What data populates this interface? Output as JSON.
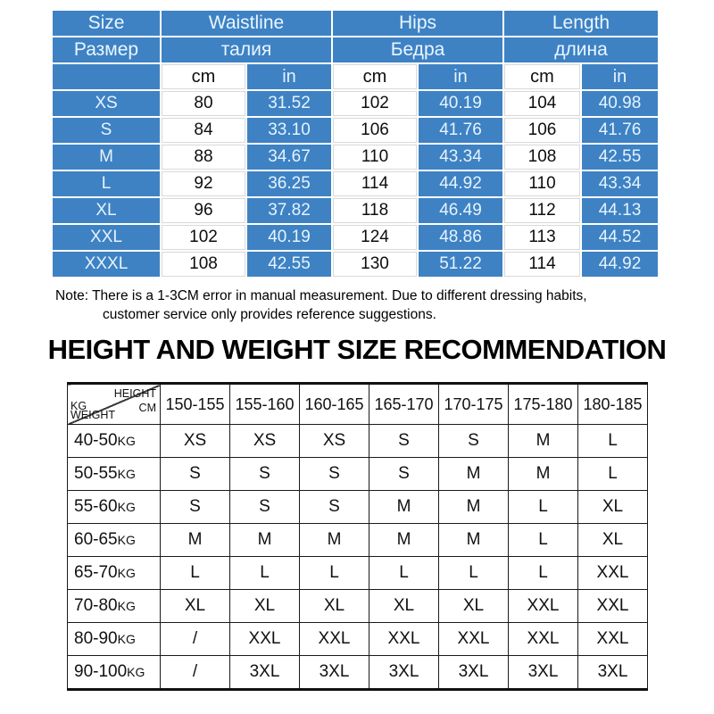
{
  "colors": {
    "table_blue": "#3E82C4",
    "light_text": "#E6F3FC",
    "dark_text": "#111111",
    "border_dark": "#1a1a1a"
  },
  "size_table": {
    "headers": [
      {
        "en": "Size",
        "ru": "Размер"
      },
      {
        "en": "Waistline",
        "ru": "талия"
      },
      {
        "en": "Hips",
        "ru": "Бедра"
      },
      {
        "en": "Length",
        "ru": "длина"
      }
    ],
    "units": {
      "cm": "cm",
      "in": "in"
    },
    "rows": [
      {
        "size": "XS",
        "values": [
          "80",
          "31.52",
          "102",
          "40.19",
          "104",
          "40.98"
        ]
      },
      {
        "size": "S",
        "values": [
          "84",
          "33.10",
          "106",
          "41.76",
          "106",
          "41.76"
        ]
      },
      {
        "size": "M",
        "values": [
          "88",
          "34.67",
          "110",
          "43.34",
          "108",
          "42.55"
        ]
      },
      {
        "size": "L",
        "values": [
          "92",
          "36.25",
          "114",
          "44.92",
          "110",
          "43.34"
        ]
      },
      {
        "size": "XL",
        "values": [
          "96",
          "37.82",
          "118",
          "46.49",
          "112",
          "44.13"
        ]
      },
      {
        "size": "XXL",
        "values": [
          "102",
          "40.19",
          "124",
          "48.86",
          "113",
          "44.52"
        ]
      },
      {
        "size": "XXXL",
        "values": [
          "108",
          "42.55",
          "130",
          "51.22",
          "114",
          "44.92"
        ]
      }
    ]
  },
  "note": {
    "line1": "Note: There is a 1-3CM error in manual measurement. Due to different dressing habits,",
    "line2": "customer service only provides reference suggestions."
  },
  "recommendation": {
    "title": "HEIGHT AND WEIGHT SIZE RECOMMENDATION",
    "corner": {
      "height": "HEIGHT",
      "cm": "CM",
      "kg": "KG",
      "weight": "WEIGHT"
    },
    "height_ranges": [
      "150-155",
      "155-160",
      "160-165",
      "165-170",
      "170-175",
      "175-180",
      "180-185"
    ],
    "rows": [
      {
        "weight": "40-50",
        "unit": "KG",
        "sizes": [
          "XS",
          "XS",
          "XS",
          "S",
          "S",
          "M",
          "L"
        ]
      },
      {
        "weight": "50-55",
        "unit": "KG",
        "sizes": [
          "S",
          "S",
          "S",
          "S",
          "M",
          "M",
          "L"
        ]
      },
      {
        "weight": "55-60",
        "unit": "KG",
        "sizes": [
          "S",
          "S",
          "S",
          "M",
          "M",
          "L",
          "XL"
        ]
      },
      {
        "weight": "60-65",
        "unit": "KG",
        "sizes": [
          "M",
          "M",
          "M",
          "M",
          "M",
          "L",
          "XL"
        ]
      },
      {
        "weight": "65-70",
        "unit": "KG",
        "sizes": [
          "L",
          "L",
          "L",
          "L",
          "L",
          "L",
          "XXL"
        ]
      },
      {
        "weight": "70-80",
        "unit": "KG",
        "sizes": [
          "XL",
          "XL",
          "XL",
          "XL",
          "XL",
          "XXL",
          "XXL"
        ]
      },
      {
        "weight": "80-90",
        "unit": "KG",
        "sizes": [
          "/",
          "XXL",
          "XXL",
          "XXL",
          "XXL",
          "XXL",
          "XXL"
        ]
      },
      {
        "weight": "90-100",
        "unit": "KG",
        "sizes": [
          "/",
          "3XL",
          "3XL",
          "3XL",
          "3XL",
          "3XL",
          "3XL"
        ]
      }
    ]
  }
}
